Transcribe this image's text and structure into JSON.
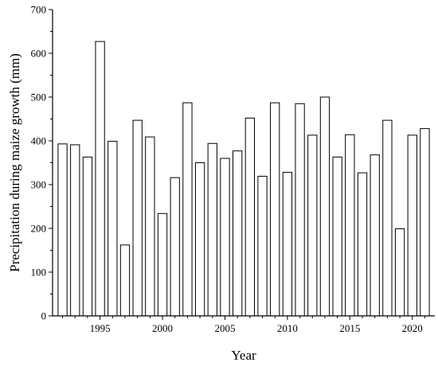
{
  "chart_data": {
    "type": "bar",
    "title": "",
    "xlabel": "Year",
    "ylabel": "Precipitation during maize growth (mm)",
    "x": [
      1992,
      1993,
      1994,
      1995,
      1996,
      1997,
      1998,
      1999,
      2000,
      2001,
      2002,
      2003,
      2004,
      2005,
      2006,
      2007,
      2008,
      2009,
      2010,
      2011,
      2012,
      2013,
      2014,
      2015,
      2016,
      2017,
      2018,
      2019,
      2020,
      2021
    ],
    "values": [
      393,
      391,
      363,
      627,
      399,
      162,
      447,
      409,
      234,
      316,
      487,
      350,
      394,
      360,
      377,
      452,
      319,
      487,
      328,
      485,
      413,
      500,
      363,
      414,
      327,
      368,
      447,
      199,
      413,
      428
    ],
    "xlim": [
      1991.2,
      2021.8
    ],
    "ylim": [
      0,
      700
    ],
    "yticks": [
      0,
      100,
      200,
      300,
      400,
      500,
      600,
      700
    ],
    "xticks": [
      1995,
      2000,
      2005,
      2010,
      2015,
      2020
    ],
    "grid": false,
    "legend": "none"
  }
}
